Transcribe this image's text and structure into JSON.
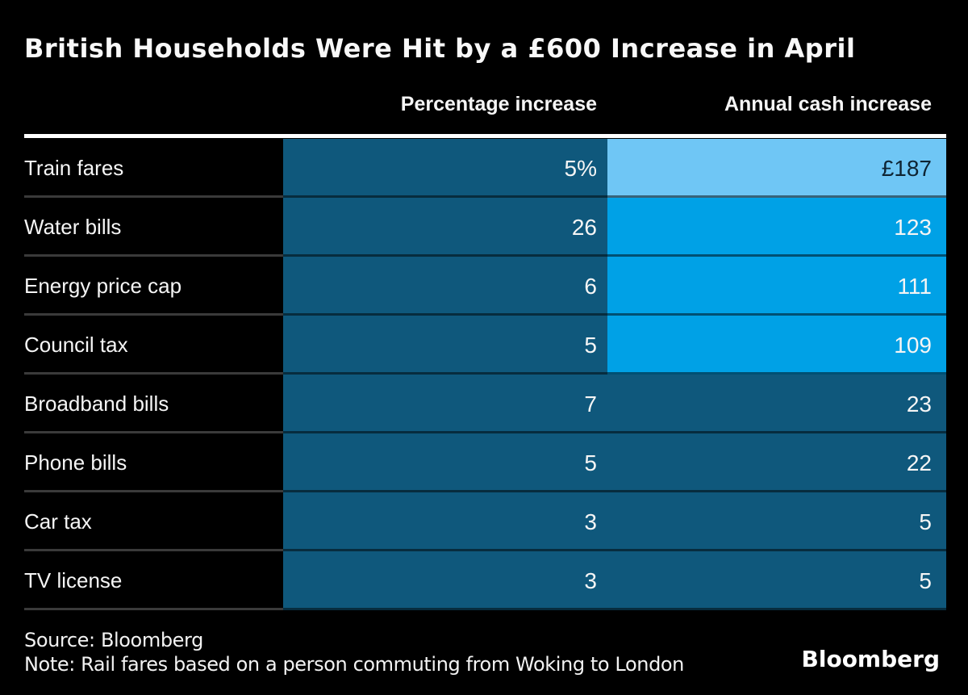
{
  "title": "British Households Were Hit by a £600 Increase in April",
  "header": {
    "percentage_label": "Percentage increase",
    "cash_label": "Annual cash increase"
  },
  "rows": [
    {
      "label": "Train fares",
      "pct_value": "5",
      "pct_suffix": "%",
      "cash_value": "£187",
      "cash_tone": "light"
    },
    {
      "label": "Water bills",
      "pct_value": "26",
      "pct_suffix": "",
      "cash_value": "123",
      "cash_tone": "bright"
    },
    {
      "label": "Energy price cap",
      "pct_value": "6",
      "pct_suffix": "",
      "cash_value": "111",
      "cash_tone": "bright"
    },
    {
      "label": "Council tax",
      "pct_value": "5",
      "pct_suffix": "",
      "cash_value": "109",
      "cash_tone": "bright"
    },
    {
      "label": "Broadband bills",
      "pct_value": "7",
      "pct_suffix": "",
      "cash_value": "23",
      "cash_tone": "dark"
    },
    {
      "label": "Phone bills",
      "pct_value": "5",
      "pct_suffix": "",
      "cash_value": "22",
      "cash_tone": "dark"
    },
    {
      "label": "Car tax",
      "pct_value": "3",
      "pct_suffix": "",
      "cash_value": "5",
      "cash_tone": "dark"
    },
    {
      "label": "TV license",
      "pct_value": "3",
      "pct_suffix": "",
      "cash_value": "5",
      "cash_tone": "dark"
    }
  ],
  "footer": {
    "source": "Source: Bloomberg",
    "note": "Note: Rail fares based on a person commuting from Woking to London",
    "logo": "Bloomberg"
  },
  "colors": {
    "background": "#000000",
    "bar_dark": "#0F587C",
    "bar_bright": "#00A1E6",
    "bar_light": "#6FC6F5",
    "text_light": "#F5F5F5",
    "text_on_light": "#0E2433",
    "separator": "#3A3A3A",
    "rule": "#FFFFFF"
  },
  "chart_data": {
    "type": "table",
    "title": "British Households Were Hit by a £600 Increase in April",
    "categories": [
      "Train fares",
      "Water bills",
      "Energy price cap",
      "Council tax",
      "Broadband bills",
      "Phone bills",
      "Car tax",
      "TV license"
    ],
    "series": [
      {
        "name": "Percentage increase",
        "unit": "%",
        "values": [
          5,
          26,
          6,
          5,
          7,
          5,
          3,
          3
        ]
      },
      {
        "name": "Annual cash increase",
        "unit": "£",
        "values": [
          187,
          123,
          111,
          109,
          23,
          22,
          5,
          5
        ]
      }
    ],
    "source": "Bloomberg",
    "note": "Rail fares based on a person commuting from Woking to London"
  }
}
